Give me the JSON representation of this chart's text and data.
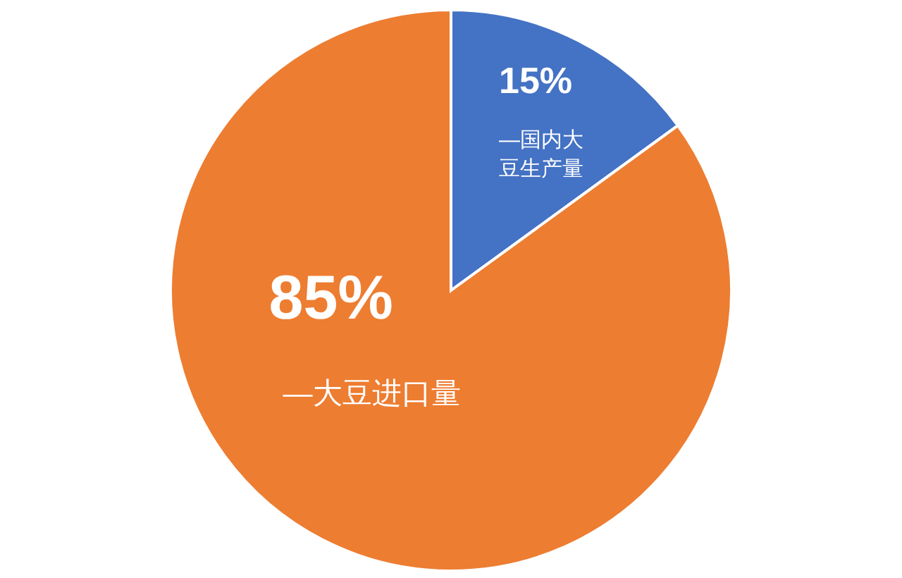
{
  "chart_data": {
    "type": "pie",
    "categories": [
      "—国内大豆生产量",
      "—大豆进口量"
    ],
    "values": [
      15,
      85
    ],
    "colors": [
      "#4472c4",
      "#ed7d31"
    ],
    "value_labels": [
      "15%",
      "85%"
    ],
    "legend": false
  }
}
